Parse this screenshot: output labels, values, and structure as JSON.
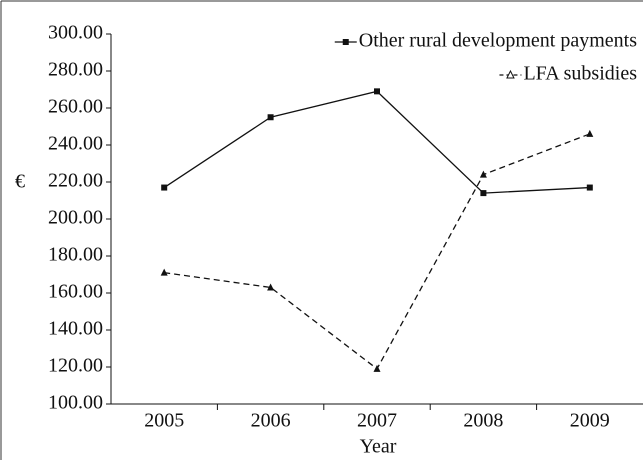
{
  "chart_data": {
    "type": "line",
    "categories": [
      "2005",
      "2006",
      "2007",
      "2008",
      "2009"
    ],
    "series": [
      {
        "name": "Other rural development payments",
        "color": "#111111",
        "dash": false,
        "marker": "square",
        "values": [
          217,
          255,
          269,
          214,
          217
        ]
      },
      {
        "name": "LFA subsidies",
        "color": "#111111",
        "dash": true,
        "marker": "triangle",
        "values": [
          171,
          163,
          119,
          224,
          246
        ]
      }
    ],
    "ylabel": "€",
    "xlabel": "Year",
    "ylim": [
      100,
      300
    ],
    "yticks": [
      {
        "value": 100,
        "label": "100.00"
      },
      {
        "value": 120,
        "label": "120.00"
      },
      {
        "value": 140,
        "label": "140.00"
      },
      {
        "value": 160,
        "label": "160.00"
      },
      {
        "value": 180,
        "label": "180.00"
      },
      {
        "value": 200,
        "label": "200.00"
      },
      {
        "value": 220,
        "label": "220.00"
      },
      {
        "value": 240,
        "label": "240.00"
      },
      {
        "value": 260,
        "label": "260.00"
      },
      {
        "value": 280,
        "label": "280.00"
      },
      {
        "value": 300,
        "label": "300.00"
      }
    ],
    "legend": "upper right",
    "grid": false
  }
}
